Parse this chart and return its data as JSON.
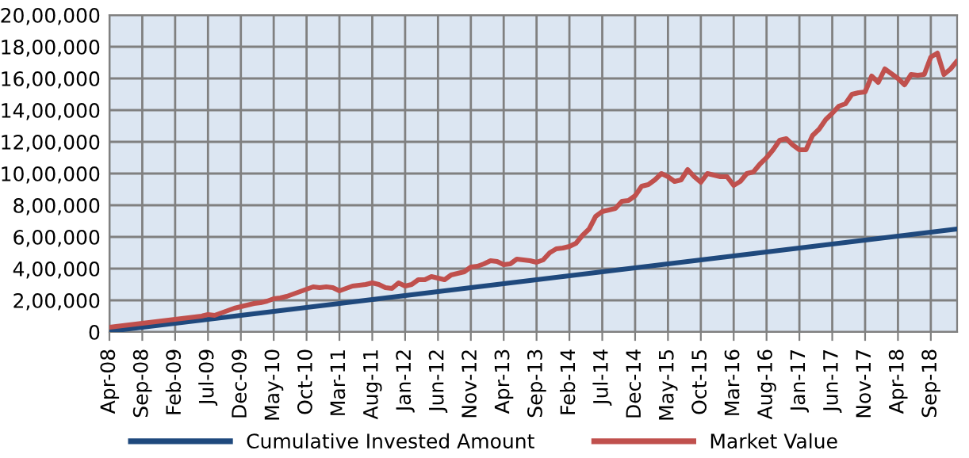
{
  "chart_data": {
    "type": "line",
    "categories": [
      "Apr-08",
      null,
      null,
      null,
      null,
      "Sep-08",
      null,
      null,
      null,
      null,
      "Feb-09",
      null,
      null,
      null,
      null,
      "Jul-09",
      null,
      null,
      null,
      null,
      "Dec-09",
      null,
      null,
      null,
      null,
      "May-10",
      null,
      null,
      null,
      null,
      "Oct-10",
      null,
      null,
      null,
      null,
      "Mar-11",
      null,
      null,
      null,
      null,
      "Aug-11",
      null,
      null,
      null,
      null,
      "Jan-12",
      null,
      null,
      null,
      null,
      "Jun-12",
      null,
      null,
      null,
      null,
      "Nov-12",
      null,
      null,
      null,
      null,
      "Apr-13",
      null,
      null,
      null,
      null,
      "Sep-13",
      null,
      null,
      null,
      null,
      "Feb-14",
      null,
      null,
      null,
      null,
      "Jul-14",
      null,
      null,
      null,
      null,
      "Dec-14",
      null,
      null,
      null,
      null,
      "May-15",
      null,
      null,
      null,
      null,
      "Oct-15",
      null,
      null,
      null,
      null,
      "Mar-16",
      null,
      null,
      null,
      null,
      "Aug-16",
      null,
      null,
      null,
      null,
      "Jan-17",
      null,
      null,
      null,
      null,
      "Jun-17",
      null,
      null,
      null,
      null,
      "Nov-17",
      null,
      null,
      null,
      null,
      "Apr-18",
      null,
      null,
      null,
      null,
      "Sep-18",
      null,
      null,
      null,
      null
    ],
    "series": [
      {
        "name": "Cumulative Invested Amount",
        "color": "#1f497d",
        "values": [
          5000,
          10000,
          15000,
          20000,
          25000,
          30000,
          35000,
          40000,
          45000,
          50000,
          55000,
          60000,
          65000,
          70000,
          75000,
          80000,
          85000,
          90000,
          95000,
          100000,
          105000,
          110000,
          115000,
          120000,
          125000,
          130000,
          135000,
          140000,
          145000,
          150000,
          155000,
          160000,
          165000,
          170000,
          175000,
          180000,
          185000,
          190000,
          195000,
          200000,
          205000,
          210000,
          215000,
          220000,
          225000,
          230000,
          235000,
          240000,
          245000,
          250000,
          255000,
          260000,
          265000,
          270000,
          275000,
          280000,
          285000,
          290000,
          295000,
          300000,
          305000,
          310000,
          315000,
          320000,
          325000,
          330000,
          335000,
          340000,
          345000,
          350000,
          355000,
          360000,
          365000,
          370000,
          375000,
          380000,
          385000,
          390000,
          395000,
          400000,
          405000,
          410000,
          415000,
          420000,
          425000,
          430000,
          435000,
          440000,
          445000,
          450000,
          455000,
          460000,
          465000,
          470000,
          475000,
          480000,
          485000,
          490000,
          495000,
          500000,
          505000,
          510000,
          515000,
          520000,
          525000,
          530000,
          535000,
          540000,
          545000,
          550000,
          555000,
          560000,
          565000,
          570000,
          575000,
          580000,
          585000,
          590000,
          595000,
          600000,
          605000,
          610000,
          615000,
          620000,
          625000,
          630000,
          635000,
          640000,
          645000,
          650000
        ]
      },
      {
        "name": "Market Value",
        "color": "#c0504d",
        "values": [
          30000,
          35000,
          40000,
          45000,
          50000,
          55000,
          60000,
          65000,
          70000,
          75000,
          80000,
          85000,
          90000,
          95000,
          100000,
          110000,
          105000,
          120000,
          135000,
          150000,
          160000,
          170000,
          180000,
          185000,
          195000,
          210000,
          215000,
          225000,
          240000,
          255000,
          270000,
          285000,
          280000,
          285000,
          280000,
          260000,
          275000,
          290000,
          295000,
          300000,
          310000,
          300000,
          280000,
          275000,
          310000,
          290000,
          300000,
          330000,
          330000,
          350000,
          340000,
          330000,
          360000,
          370000,
          380000,
          410000,
          415000,
          430000,
          450000,
          445000,
          425000,
          430000,
          460000,
          455000,
          450000,
          440000,
          455000,
          500000,
          525000,
          530000,
          540000,
          560000,
          610000,
          650000,
          730000,
          760000,
          770000,
          780000,
          825000,
          830000,
          860000,
          920000,
          930000,
          960000,
          1000000,
          980000,
          950000,
          960000,
          1025000,
          980000,
          945000,
          1000000,
          990000,
          980000,
          980000,
          925000,
          950000,
          1000000,
          1010000,
          1060000,
          1100000,
          1150000,
          1210000,
          1220000,
          1180000,
          1150000,
          1150000,
          1240000,
          1280000,
          1340000,
          1380000,
          1425000,
          1440000,
          1500000,
          1510000,
          1515000,
          1615000,
          1575000,
          1660000,
          1630000,
          1600000,
          1560000,
          1625000,
          1620000,
          1625000,
          1735000,
          1760000,
          1625000,
          1660000,
          1710000
        ]
      }
    ],
    "ylim": [
      0,
      2000000
    ],
    "yticks": [
      0,
      {
        "value": 200000,
        "label": "2,00,000"
      },
      {
        "value": 400000,
        "label": "4,00,000"
      },
      {
        "value": 600000,
        "label": "6,00,000"
      },
      {
        "value": 800000,
        "label": "8,00,000"
      },
      {
        "value": 1000000,
        "label": "10,00,000"
      },
      {
        "value": 1200000,
        "label": "12,00,000"
      },
      {
        "value": 1400000,
        "label": "14,00,000"
      },
      {
        "value": 1600000,
        "label": "16,00,000"
      },
      {
        "value": 1800000,
        "label": "18,00,000"
      },
      {
        "value": 2000000,
        "label": "20,00,000"
      }
    ],
    "grid": true,
    "legend": "bottom",
    "marker": "none",
    "line_style": "solid"
  }
}
